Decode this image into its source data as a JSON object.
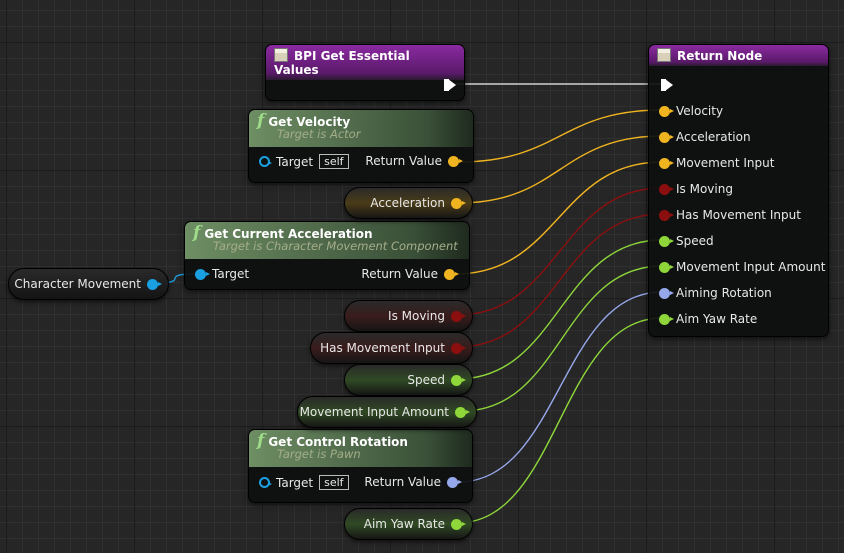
{
  "colors": {
    "vector": "#f0b420",
    "bool": "#8c0f0f",
    "float": "#8ed63a",
    "rotator": "#96a8ec",
    "object": "#1aa0e0",
    "exec": "#d0d0d0"
  },
  "bpi_node": {
    "title": "BPI Get Essential Values"
  },
  "return_node": {
    "title": "Return Node",
    "pins": [
      {
        "label": "Velocity",
        "type": "vector"
      },
      {
        "label": "Acceleration",
        "type": "vector"
      },
      {
        "label": "Movement Input",
        "type": "vector"
      },
      {
        "label": "Is Moving",
        "type": "bool"
      },
      {
        "label": "Has Movement Input",
        "type": "bool"
      },
      {
        "label": "Speed",
        "type": "float"
      },
      {
        "label": "Movement Input Amount",
        "type": "float"
      },
      {
        "label": "Aiming Rotation",
        "type": "rotator"
      },
      {
        "label": "Aim Yaw Rate",
        "type": "float"
      }
    ]
  },
  "get_velocity": {
    "title": "Get Velocity",
    "subtitle": "Target is Actor",
    "target": "Target",
    "self": "self",
    "return": "Return Value"
  },
  "get_accel": {
    "title": "Get Current Acceleration",
    "subtitle": "Target is Character Movement Component",
    "target": "Target",
    "return": "Return Value"
  },
  "get_rotation": {
    "title": "Get Control Rotation",
    "subtitle": "Target is Pawn",
    "target": "Target",
    "self": "self",
    "return": "Return Value"
  },
  "vars": {
    "char_movement": "Character Movement",
    "acceleration": "Acceleration",
    "is_moving": "Is Moving",
    "has_movement_input": "Has Movement Input",
    "speed": "Speed",
    "movement_input_amount": "Movement Input Amount",
    "aim_yaw_rate": "Aim Yaw Rate"
  },
  "wires": [
    [
      "bpi_exec",
      "ret_exec",
      "exec"
    ],
    [
      "velocity",
      "ret_0",
      "vector"
    ],
    [
      "acceleration",
      "ret_1",
      "vector"
    ],
    [
      "accel_return",
      "ret_2",
      "vector"
    ],
    [
      "is_moving",
      "ret_3",
      "bool"
    ],
    [
      "has_movement_input",
      "ret_4",
      "bool"
    ],
    [
      "speed",
      "ret_5",
      "float"
    ],
    [
      "movement_input_amount",
      "ret_6",
      "float"
    ],
    [
      "rotation",
      "ret_7",
      "rotator"
    ],
    [
      "aim_yaw_rate",
      "ret_8",
      "float"
    ],
    [
      "char_movement",
      "accel_target",
      "object"
    ]
  ]
}
